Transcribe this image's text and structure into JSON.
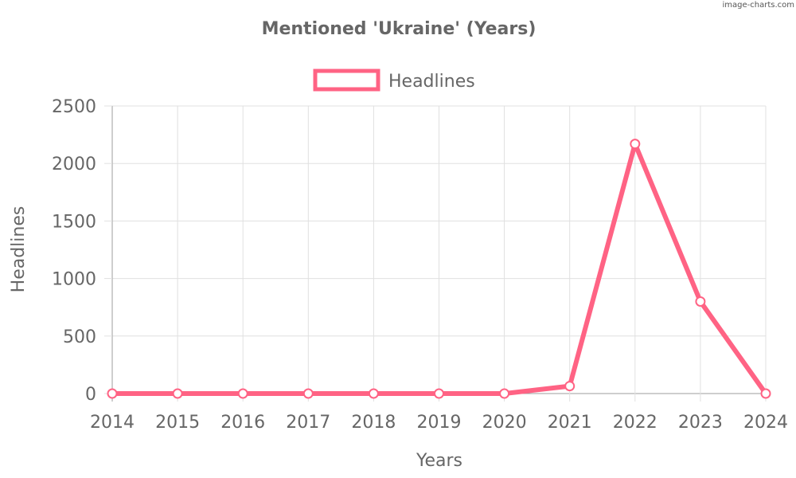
{
  "watermark": "image-charts.com",
  "chart_data": {
    "type": "line",
    "title": "Mentioned 'Ukraine' (Years)",
    "xlabel": "Years",
    "ylabel": "Headlines",
    "categories": [
      "2014",
      "2015",
      "2016",
      "2017",
      "2018",
      "2019",
      "2020",
      "2021",
      "2022",
      "2023",
      "2024"
    ],
    "series": [
      {
        "name": "Headlines",
        "color": "#ff6384",
        "values": [
          0,
          0,
          0,
          0,
          0,
          0,
          0,
          65,
          2170,
          800,
          0
        ]
      }
    ],
    "ylim": [
      0,
      2500
    ],
    "yticks": [
      "0",
      "500",
      "1000",
      "1500",
      "2000",
      "2500"
    ],
    "grid": true,
    "legend": "top-center"
  }
}
